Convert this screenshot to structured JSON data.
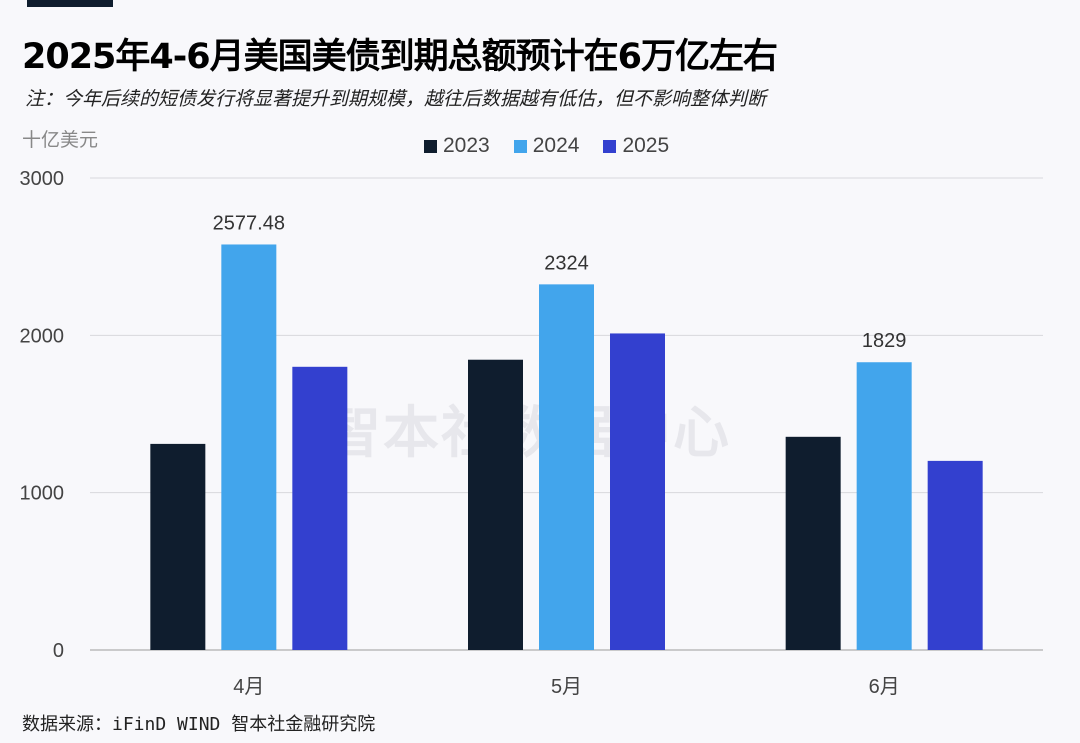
{
  "title": "2025年4-6月美国美债到期总额预计在6万亿左右",
  "subtitle": "注：今年后续的短债发行将显著提升到期规模，越往后数据越有低估，但不影响整体判断",
  "source": "数据来源：iFinD WIND 智本社金融研究院",
  "watermark": "智本社数据中心",
  "chart_data": {
    "type": "bar",
    "title": "2025年4-6月美国美债到期总额预计在6万亿左右",
    "ylabel": "十亿美元",
    "xlabel": "",
    "categories": [
      "4月",
      "5月",
      "6月"
    ],
    "series": [
      {
        "name": "2023",
        "color": "#0f1d2e",
        "values": [
          1310,
          1845,
          1355
        ]
      },
      {
        "name": "2024",
        "color": "#42a5ec",
        "values": [
          2577.48,
          2324,
          1829
        ]
      },
      {
        "name": "2025",
        "color": "#3340cf",
        "values": [
          1800,
          2012,
          1202
        ]
      }
    ],
    "data_labels": {
      "series": "2024",
      "labels": [
        "2577.48",
        "2324",
        "1829"
      ]
    },
    "ylim": [
      0,
      3000
    ],
    "yticks": [
      0,
      1000,
      2000,
      3000
    ],
    "grid": true,
    "legend": "top-center"
  }
}
